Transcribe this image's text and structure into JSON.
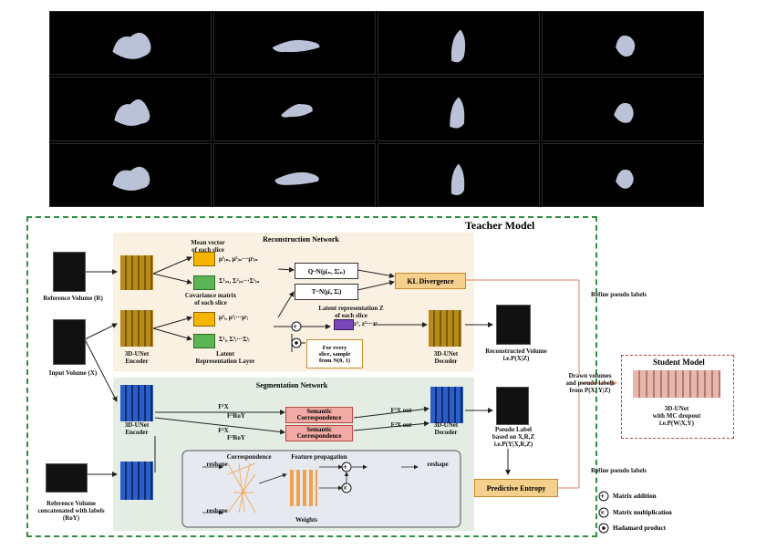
{
  "teacher_title": "Teacher  Model",
  "recon": {
    "title": "Reconstruction Network",
    "mean_vector": "Mean vector\nof each slice",
    "mean_formula": "μ¹ᵢₙ, μ²ᵢₙ···μˢᵢₙ",
    "cov_formula": "Σ¹ᵢₙ, Σ²ᵢₙ···Σˢᵢₙ",
    "cov_label": "Covariance matrix\nof each slice",
    "q_formula": "Q~N(μ̄ᵢₙ, Σ̄ᵢₙ)",
    "t_formula": "T~N(μ̄ᵢ, Σ̄ᵢ)",
    "kl": "KL Divergence",
    "mu_i": "μ¹ᵢ, μ²ᵢ···μˢᵢ",
    "sigma_i": "Σ¹ᵢ, Σ²ᵢ···Σˢᵢ",
    "latent_z": "Latent representation Z\nof each slice",
    "z_formula": "z¹, z²···zˢ",
    "sample_text": "For every\nslice,  sample\nfrom N(0, 1)",
    "encoder": "3D-UNet\nEncoder",
    "latent_layer": "Latent\nRepresentation Layer",
    "decoder": "3D-UNet\nDecoder",
    "recon_volume": "Reconstructed Volume\ni.e.P(X|Z)"
  },
  "inputs": {
    "ref_volume": "Reference Volume (R)",
    "input_volume": "Input Volume (X)",
    "roy": "Reference Volume\nconcatenated with labels\n(RoY)"
  },
  "seg": {
    "title": "Segmentation Network",
    "encoder": "3D-UNet\nEncoder",
    "decoder": "3D-UNet\nDecoder",
    "semantic": "Semantic\nCorrespondence",
    "f1roy": "F¹RoY",
    "f1x": "F¹X",
    "f2x": "F²X",
    "f2roy": "F²RoY",
    "f1out": "F¹X out",
    "f2out": "F²X out",
    "correspondence": "Correspondence",
    "feature_prop": "Feature propagation",
    "reshape": "reshape",
    "weights": "Weights",
    "pseudo": "Pseudo Label\nbased on X,R,Z\ni.e.P(Y|X,R,Z)",
    "entropy": "Predictive Entropy"
  },
  "right": {
    "refine1": "Refine pseudo labels",
    "refine2": "Refine pseudo labels",
    "drawn": "Drawn volumes\nand pseudo labels\nfrom P(X, Y|Z)",
    "student_title": "Student  Model",
    "student_desc": "3D-UNet\nwith MC dropout\ni.e.P(W|X,Y)"
  },
  "legend": {
    "add": "Matrix addition",
    "mult": "Matrix multiplication",
    "hadamard": "Hadamard product"
  }
}
